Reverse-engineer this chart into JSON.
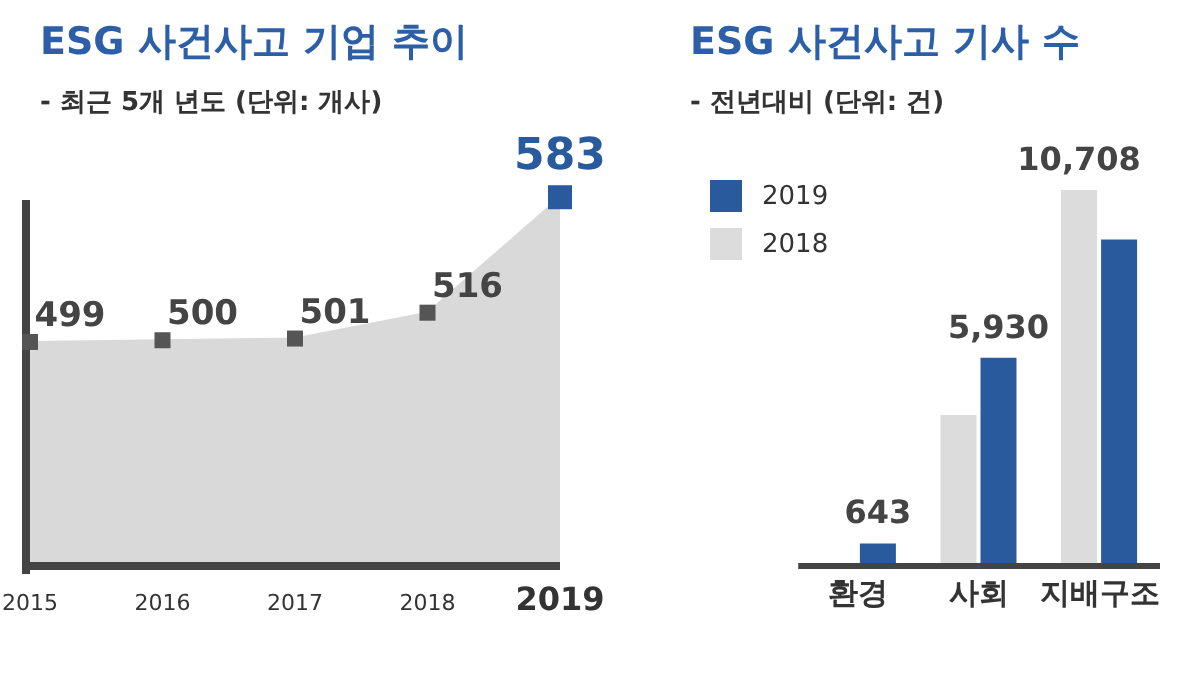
{
  "chart_data": [
    {
      "type": "area",
      "title": "ESG 사건사고 기업 추이",
      "subtitle": "- 최근 5개 년도 (단위: 개사)",
      "categories": [
        "2015",
        "2016",
        "2017",
        "2018",
        "2019"
      ],
      "series": [
        {
          "color": "#d9d9d9",
          "values": [
            499,
            500,
            501,
            516,
            583
          ],
          "colors": [
            "#555555",
            "#555555",
            "#555555",
            "#555555",
            "#2a5a9e"
          ]
        }
      ],
      "marker": "square",
      "data_labels": true
    },
    {
      "type": "bar",
      "title": "ESG 사건사고 기사 수",
      "subtitle": "- 전년대비 (단위: 건)",
      "categories": [
        "환경",
        "사회",
        "지배구조"
      ],
      "series": [
        {
          "name": "2018",
          "color": "#dcdcdc",
          "values": [
            null,
            4300,
            10708
          ],
          "value_labels": [
            null,
            null,
            "10,708"
          ]
        },
        {
          "name": "2019",
          "color": "#2a5a9e",
          "values": [
            643,
            5930,
            9300
          ],
          "value_labels": [
            "643",
            "5,930",
            null
          ]
        }
      ],
      "legend": "top left"
    }
  ]
}
